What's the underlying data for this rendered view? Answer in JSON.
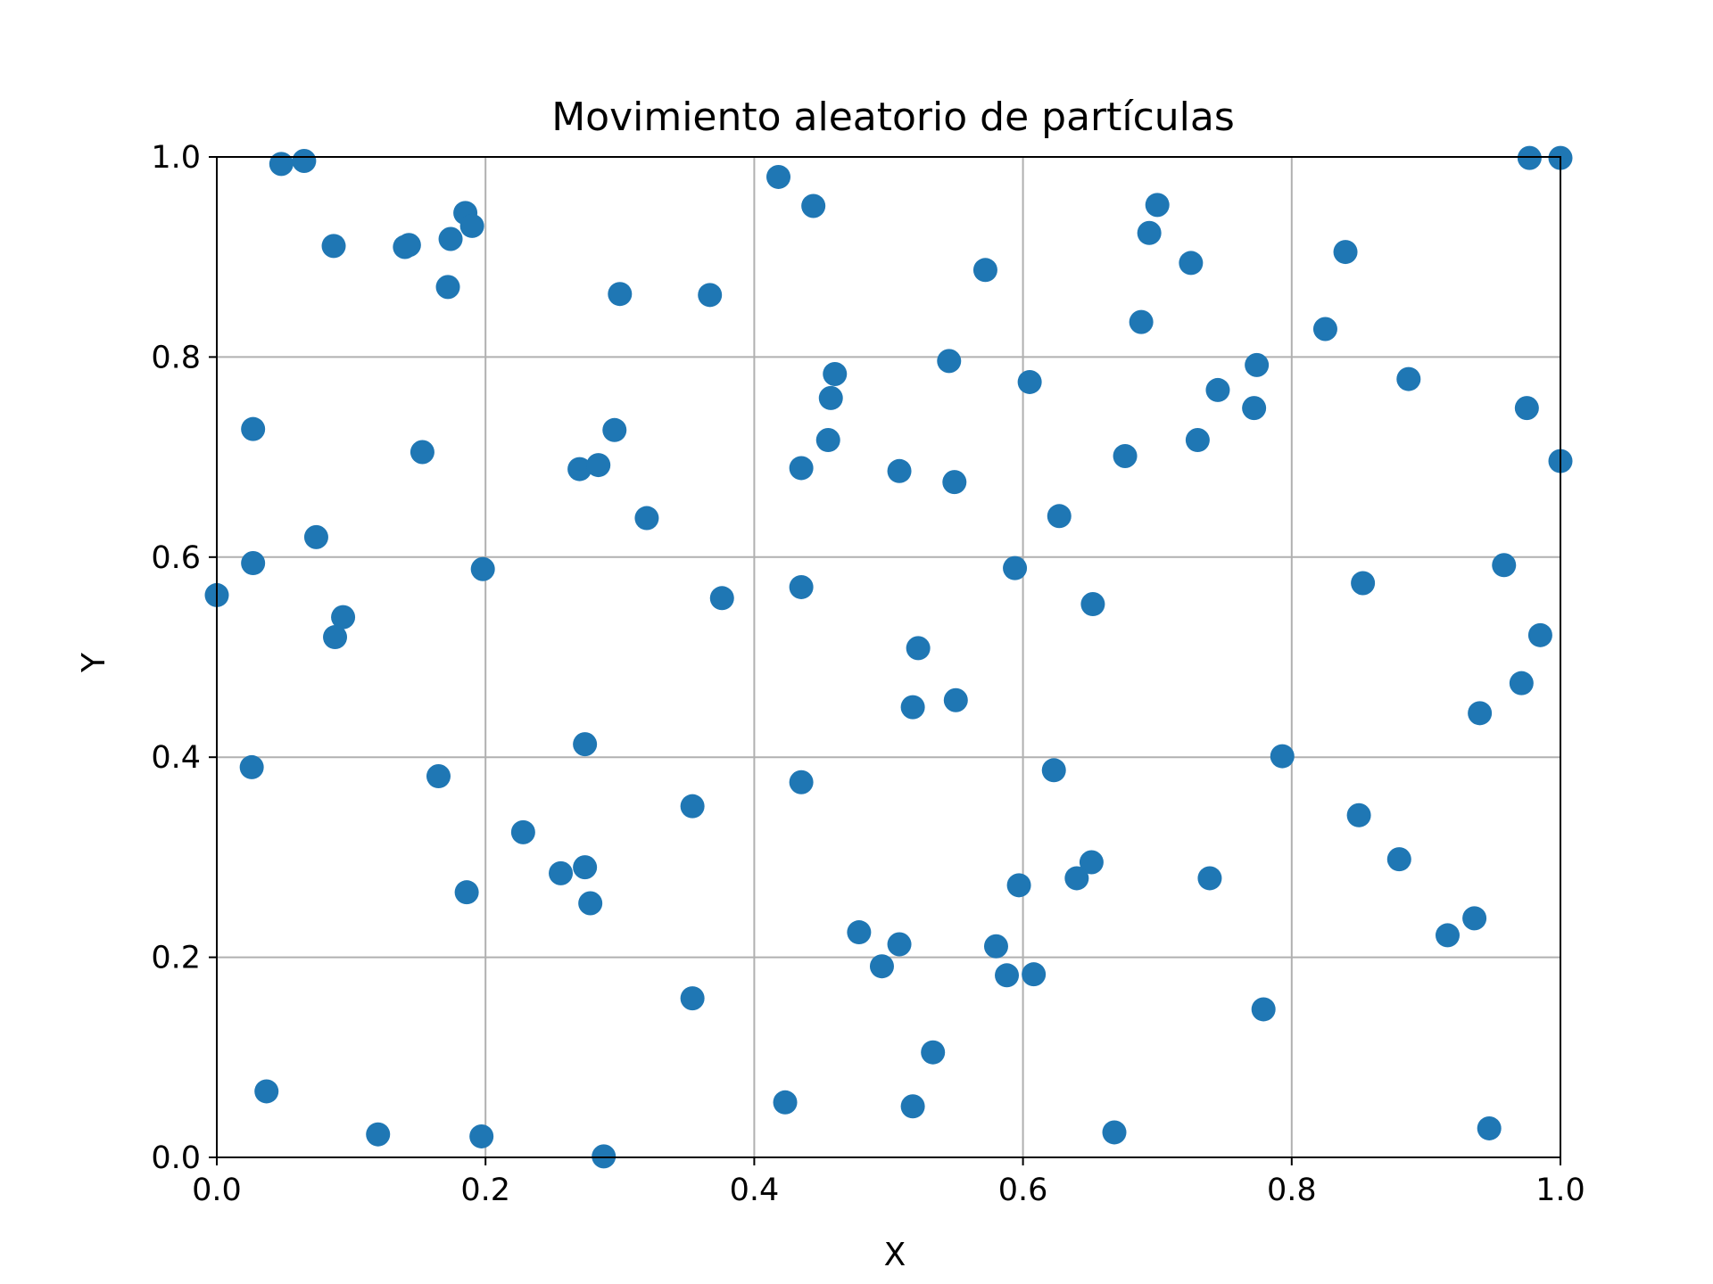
{
  "colors": {
    "point": "#1f77b4",
    "grid": "#b0b0b0",
    "axis": "#000000"
  },
  "chart_data": {
    "type": "scatter",
    "title": "Movimiento aleatorio de partículas",
    "xlabel": "X",
    "ylabel": "Y",
    "xlim": [
      0,
      1
    ],
    "ylim": [
      0,
      1
    ],
    "grid": true,
    "x_ticks": [
      "0.0",
      "0.2",
      "0.4",
      "0.6",
      "0.8",
      "1.0"
    ],
    "y_ticks": [
      "0.0",
      "0.2",
      "0.4",
      "0.6",
      "0.8",
      "1.0"
    ],
    "series": [
      {
        "points": [
          [
            0.048,
            0.993
          ],
          [
            0.065,
            0.996
          ],
          [
            0.087,
            0.911
          ],
          [
            0.14,
            0.91
          ],
          [
            0.143,
            0.912
          ],
          [
            0.174,
            0.918
          ],
          [
            0.185,
            0.944
          ],
          [
            0.19,
            0.931
          ],
          [
            0.172,
            0.87
          ],
          [
            0.3,
            0.863
          ],
          [
            0.367,
            0.862
          ],
          [
            0.418,
            0.98
          ],
          [
            0.444,
            0.951
          ],
          [
            0.572,
            0.887
          ],
          [
            0.7,
            0.952
          ],
          [
            0.694,
            0.924
          ],
          [
            0.725,
            0.894
          ],
          [
            0.84,
            0.905
          ],
          [
            0.977,
            0.999
          ],
          [
            1.0,
            0.999
          ],
          [
            0.688,
            0.835
          ],
          [
            0.825,
            0.828
          ],
          [
            0.545,
            0.796
          ],
          [
            0.46,
            0.783
          ],
          [
            0.457,
            0.759
          ],
          [
            0.605,
            0.775
          ],
          [
            0.774,
            0.792
          ],
          [
            0.745,
            0.767
          ],
          [
            0.772,
            0.749
          ],
          [
            0.887,
            0.778
          ],
          [
            0.975,
            0.749
          ],
          [
            0.027,
            0.728
          ],
          [
            0.296,
            0.727
          ],
          [
            0.455,
            0.717
          ],
          [
            0.73,
            0.717
          ],
          [
            0.153,
            0.705
          ],
          [
            0.27,
            0.688
          ],
          [
            0.284,
            0.692
          ],
          [
            0.435,
            0.689
          ],
          [
            0.508,
            0.686
          ],
          [
            0.549,
            0.675
          ],
          [
            0.676,
            0.701
          ],
          [
            1.0,
            0.696
          ],
          [
            0.32,
            0.639
          ],
          [
            0.627,
            0.641
          ],
          [
            0.074,
            0.62
          ],
          [
            0.027,
            0.594
          ],
          [
            0.198,
            0.588
          ],
          [
            0.594,
            0.589
          ],
          [
            0.958,
            0.592
          ],
          [
            0.853,
            0.574
          ],
          [
            0.435,
            0.57
          ],
          [
            0.376,
            0.559
          ],
          [
            0.652,
            0.553
          ],
          [
            0.0,
            0.562
          ],
          [
            0.094,
            0.54
          ],
          [
            0.088,
            0.52
          ],
          [
            0.522,
            0.509
          ],
          [
            0.985,
            0.522
          ],
          [
            0.971,
            0.474
          ],
          [
            0.518,
            0.45
          ],
          [
            0.55,
            0.457
          ],
          [
            0.94,
            0.444
          ],
          [
            0.274,
            0.413
          ],
          [
            0.793,
            0.401
          ],
          [
            0.026,
            0.39
          ],
          [
            0.165,
            0.381
          ],
          [
            0.623,
            0.387
          ],
          [
            0.435,
            0.375
          ],
          [
            0.354,
            0.351
          ],
          [
            0.85,
            0.342
          ],
          [
            0.228,
            0.325
          ],
          [
            0.256,
            0.284
          ],
          [
            0.274,
            0.29
          ],
          [
            0.278,
            0.254
          ],
          [
            0.186,
            0.265
          ],
          [
            0.651,
            0.295
          ],
          [
            0.64,
            0.279
          ],
          [
            0.597,
            0.272
          ],
          [
            0.739,
            0.279
          ],
          [
            0.88,
            0.298
          ],
          [
            0.478,
            0.225
          ],
          [
            0.508,
            0.213
          ],
          [
            0.495,
            0.191
          ],
          [
            0.58,
            0.211
          ],
          [
            0.588,
            0.182
          ],
          [
            0.608,
            0.183
          ],
          [
            0.916,
            0.222
          ],
          [
            0.936,
            0.239
          ],
          [
            0.354,
            0.159
          ],
          [
            0.779,
            0.148
          ],
          [
            0.533,
            0.105
          ],
          [
            0.037,
            0.066
          ],
          [
            0.423,
            0.055
          ],
          [
            0.518,
            0.051
          ],
          [
            0.12,
            0.023
          ],
          [
            0.197,
            0.021
          ],
          [
            0.288,
            0.001
          ],
          [
            0.668,
            0.025
          ],
          [
            0.947,
            0.029
          ]
        ]
      }
    ]
  }
}
